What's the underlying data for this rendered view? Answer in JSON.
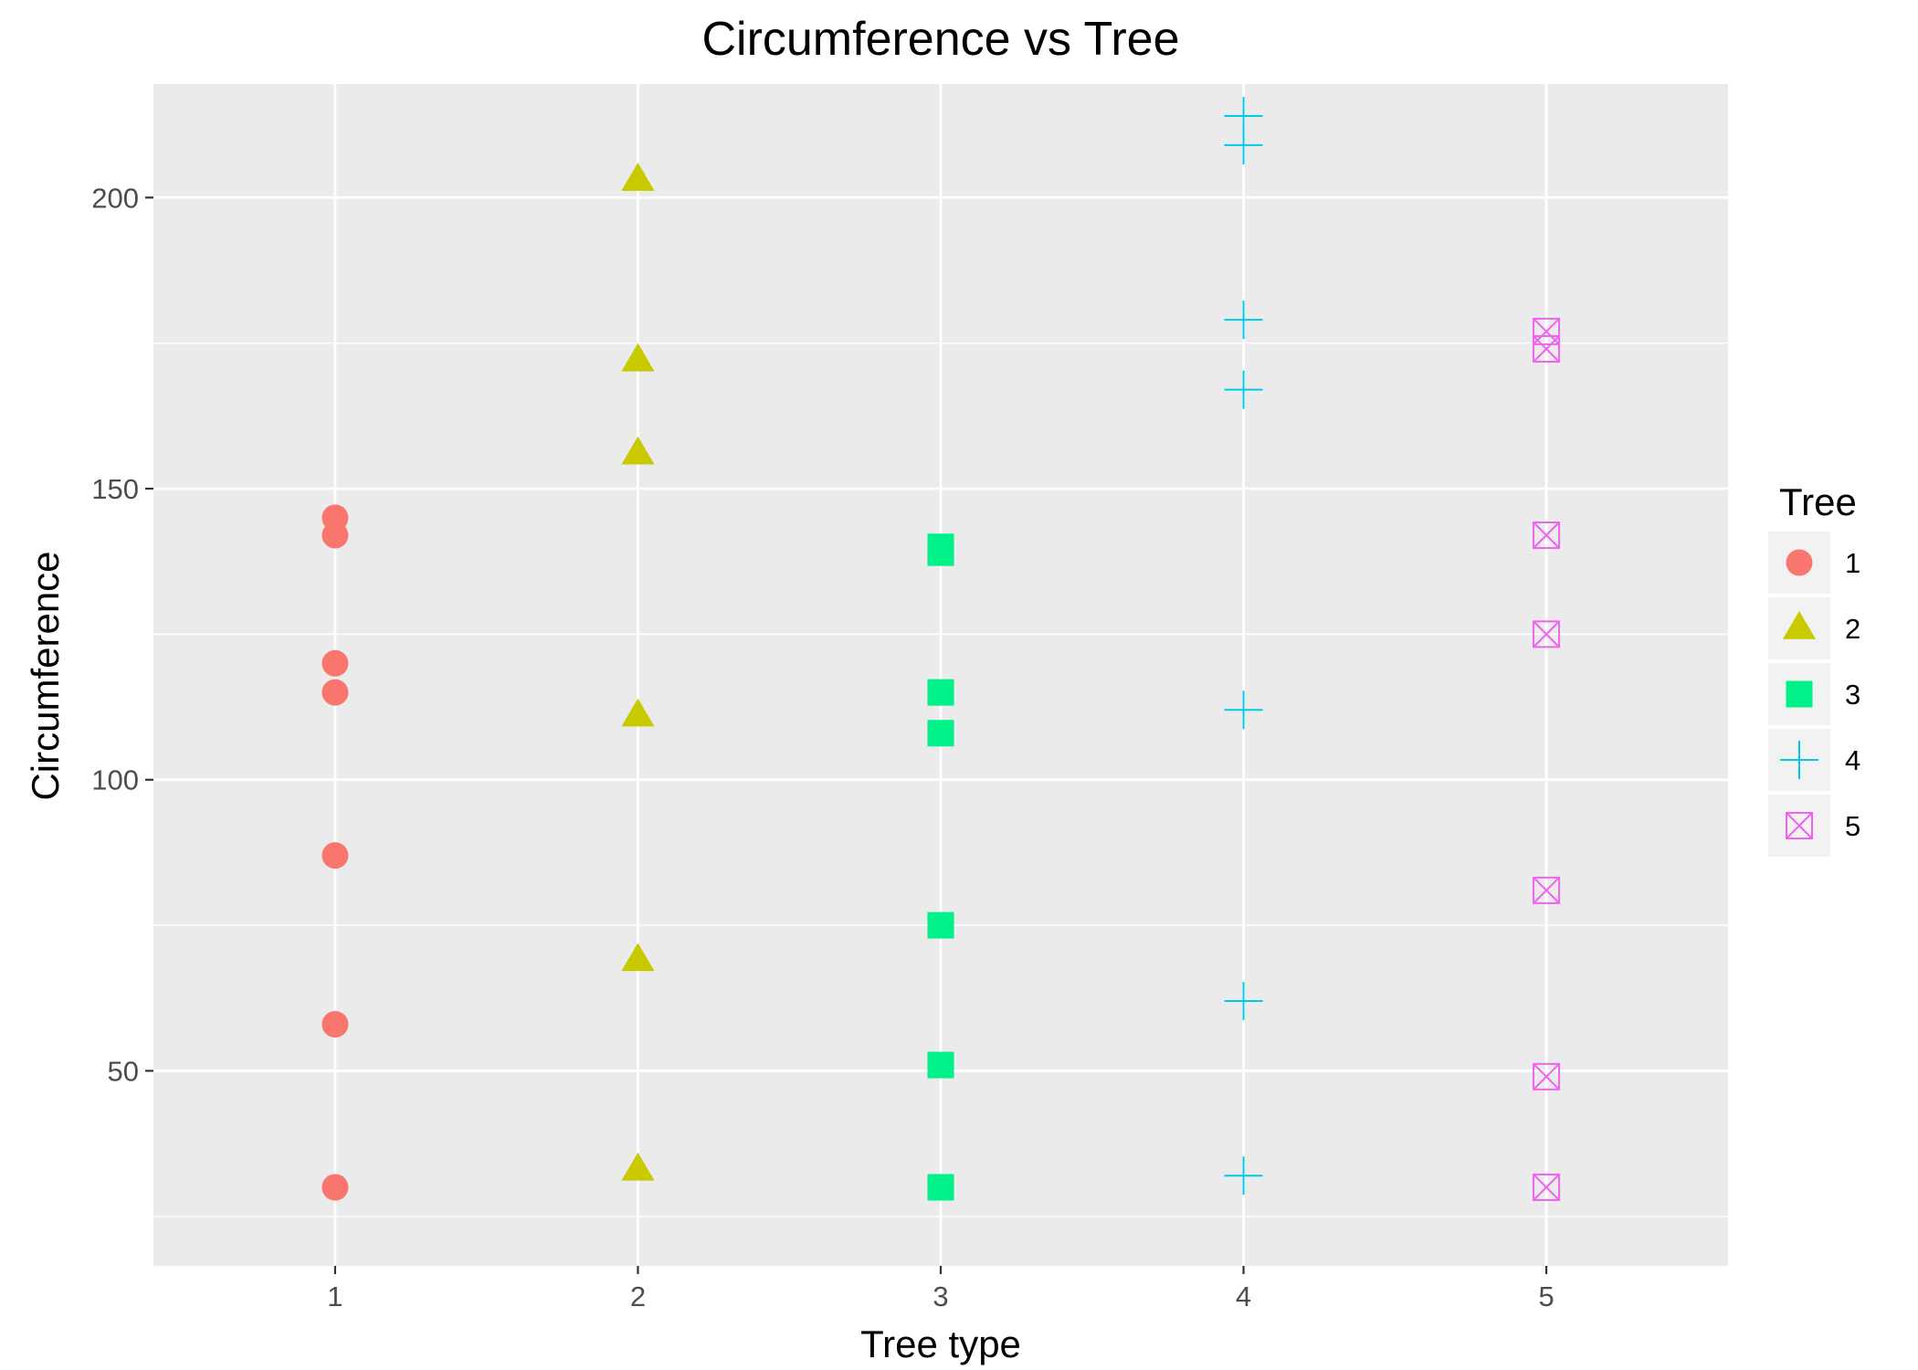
{
  "chart_data": {
    "type": "scatter",
    "title": "Circumference vs Tree",
    "xlabel": "Tree type",
    "ylabel": "Circumference",
    "x_ticks": [
      1,
      2,
      3,
      4,
      5
    ],
    "y_ticks": [
      50,
      100,
      150,
      200
    ],
    "xlim": [
      0.4,
      5.6
    ],
    "ylim": [
      16.5,
      219.5
    ],
    "grid": true,
    "legend": {
      "title": "Tree",
      "placement": "right",
      "entries": [
        "1",
        "2",
        "3",
        "4",
        "5"
      ]
    },
    "series": [
      {
        "name": "1",
        "x": 1,
        "shape": "circle",
        "color": "#F8766D",
        "values": [
          30,
          58,
          87,
          115,
          120,
          142,
          145
        ]
      },
      {
        "name": "2",
        "x": 2,
        "shape": "triangle",
        "color": "#C9C900",
        "values": [
          33,
          69,
          111,
          156,
          172,
          203,
          203
        ]
      },
      {
        "name": "3",
        "x": 3,
        "shape": "square",
        "color": "#00F08A",
        "values": [
          30,
          51,
          75,
          108,
          115,
          139,
          140
        ]
      },
      {
        "name": "4",
        "x": 4,
        "shape": "plus",
        "color": "#00C9E8",
        "values": [
          32,
          62,
          112,
          167,
          179,
          209,
          214
        ]
      },
      {
        "name": "5",
        "x": 5,
        "shape": "boxed-x",
        "color": "#F062F0",
        "values": [
          30,
          49,
          81,
          125,
          142,
          174,
          177
        ]
      }
    ]
  }
}
